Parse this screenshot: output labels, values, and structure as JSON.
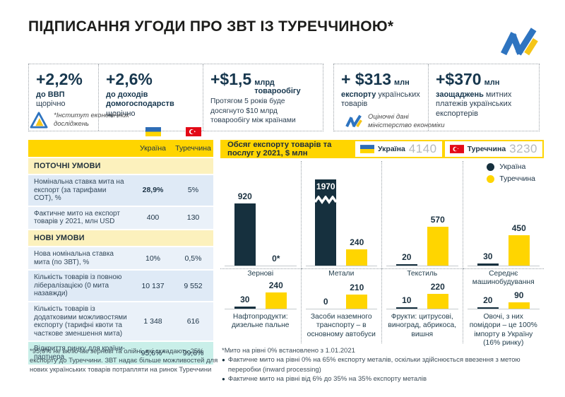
{
  "title": "ПІДПИСАННЯ УГОДИ ПРО ЗВТ ІЗ ТУРЕЧЧИНОЮ*",
  "colors": {
    "ukraine_bar": "#16303e",
    "turkey_bar": "#ffd500",
    "header_yellow": "#ffd500",
    "section_yellow": "#fcf1bd",
    "row_blue": "#dfeaf6",
    "highlight_teal": "#c9efe9",
    "accent_navy": "#17374e"
  },
  "stats": {
    "boxes": [
      {
        "big": "+2,2%",
        "b": "до ВВП",
        "rest": " щорічно"
      },
      {
        "big": "+2,6%",
        "b": "до доходів домогосподарств",
        "rest": " щорічно"
      },
      {
        "big": "+$1,5",
        "unit": "млрд товарообігу",
        "sub": "Протягом 5 років буде досягнуто $10 млрд товарообігу між країнами"
      },
      {
        "big": "+ $313",
        "unit": "млн",
        "b": "експорту",
        "rest": " українських товарів"
      },
      {
        "big": "+$370",
        "unit": "млн",
        "b": "заощаджень",
        "rest": " митних платежів українських експортерів"
      }
    ]
  },
  "attribution": {
    "left_line1": "*Інститут економічних",
    "left_line2": "досліджень",
    "right_line1": "Оціночні дані",
    "right_line2": "міністерство економіки"
  },
  "table": {
    "columns": [
      "Україна",
      "Туреччина"
    ],
    "rows": [
      {
        "type": "section",
        "label": "ПОТОЧНІ УМОВИ"
      },
      {
        "type": "data",
        "shade": "a",
        "label": "Номінальна ставка мита на експорт (за тарифами СОТ), %",
        "ua": "28,9%",
        "tr": "5%",
        "ua_bold": true
      },
      {
        "type": "data",
        "shade": "b",
        "label": "Фактичне мито на експорт товарів у 2021, млн USD",
        "ua": "400",
        "tr": "130"
      },
      {
        "type": "section",
        "label": "НОВІ УМОВИ"
      },
      {
        "type": "data",
        "shade": "b",
        "label": "Нова номінальна ставка мита (по ЗВТ), %",
        "ua": "10%",
        "tr": "0,5%"
      },
      {
        "type": "data",
        "shade": "a",
        "label": "Кількість товарів із повною лібералізацією (0 мита назавжди)",
        "ua": "10 137",
        "tr": "9 552"
      },
      {
        "type": "data",
        "shade": "b",
        "label": "Кількість товарів із додатковими можливостями експорту (тарифні квоти та часткове зменшення мита)",
        "ua": "1 348",
        "tr": "616"
      },
      {
        "type": "highlight",
        "label": "Відкриття ринку для країни-партнера",
        "ua": "95,6%*",
        "tr": "99,6%"
      }
    ]
  },
  "chart_data": {
    "type": "bar",
    "title": "Обсяг експорту товарів та послуг у 2021, $ млн",
    "totals": [
      {
        "name": "Україна",
        "value": "4140"
      },
      {
        "name": "Туреччина",
        "value": "3230"
      }
    ],
    "legend": [
      {
        "name": "Україна",
        "color": "#16303e"
      },
      {
        "name": "Туреччина",
        "color": "#ffd500"
      }
    ],
    "ylabel": "$ млн",
    "charts": [
      {
        "label": "Зернові",
        "ua": 920,
        "tr": 0,
        "tr_label": "0*"
      },
      {
        "label": "Метали",
        "ua": 1970,
        "tr": 240,
        "ua_truncated": true
      },
      {
        "label": "Текстиль",
        "ua": 20,
        "tr": 570
      },
      {
        "label": "Середнє машинобудування",
        "ua": 30,
        "tr": 450
      },
      {
        "label": "Нафтопродукти: дизельне пальне",
        "ua": 30,
        "tr": 240
      },
      {
        "label": "Засоби наземного транспорту – в основному автобуси",
        "ua": 0,
        "tr": 210
      },
      {
        "label": "Фрукти: цитрусові, виноград, абрикоса, вишня",
        "ua": 10,
        "tr": 220
      },
      {
        "label": "Овочі, з них помідори – це 100% імпорту в Україну (16% ринку)",
        "ua": 20,
        "tr": 90
      }
    ]
  },
  "footnotes": {
    "left": "*95,6% не включає зернові та олійні, які складають 25% експорту до Туреччини. ЗВТ надає більше можливостей для нових українських товарів потрапляти на ринок Туреччини",
    "right_note": "*Мито на рівні 0% встановлено з 1.01.2021",
    "right_bullets": [
      "Фактичне мито на рівні 0% на 65% експорту металів, оскільки здійснюється ввезення з метою переробки (inward processing)",
      "Фактичне мито на рівні від 6% до 35% на 35% експорту металів"
    ]
  }
}
